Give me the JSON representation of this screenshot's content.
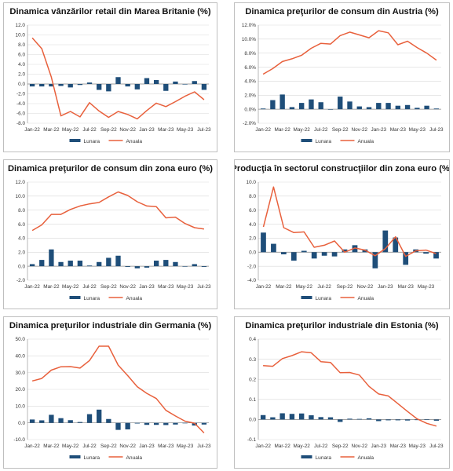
{
  "colors": {
    "bar": "#1f4e79",
    "line": "#e8603c",
    "grid": "#d9d9d9",
    "axis": "#999999"
  },
  "legend": {
    "bar_label": "Lunara",
    "line_label": "Anuala"
  },
  "chart_data": [
    {
      "type": "bar+line",
      "title": "Dinamica vânzărilor retail din Marea Britanie (%)",
      "ylim": [
        -8.0,
        12.0
      ],
      "yticks": [
        "12.0",
        "10.0",
        "8.0",
        "6.0",
        "4.0",
        "2.0",
        "0.0",
        "-2.0",
        "-4.0",
        "-6.0",
        "-8.0"
      ],
      "xticks": [
        "Jan-22",
        "Mar-22",
        "May-22",
        "Jul-22",
        "Sep-22",
        "Nov-22",
        "Jan-23",
        "Mar-23",
        "May-23",
        "Jul-23"
      ],
      "grid": true,
      "legend_position": "bottom",
      "series": [
        {
          "name": "Lunara",
          "kind": "bar",
          "values": [
            -0.5,
            -0.5,
            -0.5,
            -0.4,
            -0.7,
            -0.2,
            0.3,
            -1.2,
            -1.5,
            1.4,
            -0.5,
            -1.1,
            1.2,
            0.8,
            -1.4,
            0.5,
            -0.1,
            0.6,
            -1.2
          ]
        },
        {
          "name": "Anuala",
          "kind": "line",
          "values": [
            9.4,
            7.2,
            1.4,
            -6.5,
            -5.6,
            -6.7,
            -3.8,
            -5.5,
            -6.8,
            -5.6,
            -6.2,
            -7.1,
            -5.4,
            -3.9,
            -4.6,
            -3.6,
            -2.5,
            -1.6,
            -3.2
          ]
        }
      ]
    },
    {
      "type": "bar+line",
      "title": "Dinamica preţurilor de consum din Austria (%)",
      "ylim": [
        -2.0,
        12.0
      ],
      "yticks": [
        "12.0%",
        "10.0%",
        "8.0%",
        "6.0%",
        "4.0%",
        "2.0%",
        "0.0%",
        "-2.0%"
      ],
      "xticks": [
        "Jan-22",
        "Mar-22",
        "May-22",
        "Jul-22",
        "Sep-22",
        "Nov-22",
        "Jan-23",
        "Mar-23",
        "May-23",
        "Jul-23"
      ],
      "grid": true,
      "legend_position": "bottom",
      "series": [
        {
          "name": "Lunara",
          "kind": "bar",
          "values": [
            0.1,
            1.3,
            2.1,
            0.3,
            0.9,
            1.4,
            1.0,
            0.0,
            1.8,
            1.1,
            0.4,
            0.3,
            0.9,
            0.9,
            0.5,
            0.6,
            0.2,
            0.5,
            0.1
          ]
        },
        {
          "name": "Anuala",
          "kind": "line",
          "values": [
            5.0,
            5.8,
            6.8,
            7.2,
            7.7,
            8.7,
            9.4,
            9.3,
            10.5,
            11.0,
            10.6,
            10.2,
            11.2,
            10.9,
            9.2,
            9.7,
            8.8,
            8.0,
            7.0
          ]
        }
      ]
    },
    {
      "type": "bar+line",
      "title": "Dinamica preţurilor de consum din zona euro (%)",
      "ylim": [
        -2.0,
        12.0
      ],
      "yticks": [
        "12.0",
        "10.0",
        "8.0",
        "6.0",
        "4.0",
        "2.0",
        "0.0",
        "-2.0"
      ],
      "xticks": [
        "Jan-22",
        "Mar-22",
        "May-22",
        "Jul-22",
        "Sep-22",
        "Nov-22",
        "Jan-23",
        "Mar-23",
        "May-23",
        "Jul-23"
      ],
      "grid": true,
      "legend_position": "bottom",
      "series": [
        {
          "name": "Lunara",
          "kind": "bar",
          "values": [
            0.3,
            0.9,
            2.4,
            0.6,
            0.8,
            0.8,
            0.1,
            0.6,
            1.2,
            1.5,
            -0.1,
            -0.3,
            -0.2,
            0.8,
            0.9,
            0.6,
            0.0,
            0.3,
            -0.1
          ]
        },
        {
          "name": "Anuala",
          "kind": "line",
          "values": [
            5.1,
            5.9,
            7.4,
            7.4,
            8.1,
            8.6,
            8.9,
            9.1,
            9.9,
            10.6,
            10.1,
            9.2,
            8.6,
            8.5,
            6.9,
            7.0,
            6.1,
            5.5,
            5.3
          ]
        }
      ]
    },
    {
      "type": "bar+line",
      "title": "Producţia în sectorul construcţiilor din zona euro (%)",
      "ylim": [
        -4.0,
        10.0
      ],
      "yticks": [
        "10.0",
        "8.0",
        "6.0",
        "4.0",
        "2.0",
        "0.0",
        "-2.0",
        "-4.0"
      ],
      "xticks": [
        "Jan-22",
        "Mar-22",
        "May-22",
        "Jul-22",
        "Sep-22",
        "Nov-22",
        "Jan-23",
        "Mar-23",
        "May-23"
      ],
      "grid": true,
      "legend_position": "bottom",
      "series": [
        {
          "name": "Lunara",
          "kind": "bar",
          "values": [
            2.8,
            1.2,
            -0.3,
            -1.2,
            0.2,
            -0.9,
            -0.5,
            -0.6,
            0.4,
            1.0,
            0.4,
            -2.3,
            3.1,
            2.1,
            -1.8,
            0.4,
            -0.2,
            -0.9
          ]
        },
        {
          "name": "Anuala",
          "kind": "line",
          "values": [
            3.6,
            9.3,
            3.5,
            2.8,
            2.9,
            0.7,
            1.0,
            1.6,
            0.0,
            0.6,
            0.3,
            -0.5,
            0.5,
            2.2,
            -0.6,
            0.2,
            0.3,
            -0.2
          ]
        }
      ]
    },
    {
      "type": "bar+line",
      "title": "Dinamica preţurilor industriale din Germania (%)",
      "ylim": [
        -10.0,
        50.0
      ],
      "yticks": [
        "50.0",
        "40.0",
        "30.0",
        "20.0",
        "10.0",
        "0.0",
        "-10.0"
      ],
      "xticks": [
        "Jan-22",
        "Mar-22",
        "May-22",
        "Jul-22",
        "Sep-22",
        "Nov-22",
        "Jan-23",
        "Mar-23",
        "May-23",
        "Jul-23"
      ],
      "grid": true,
      "legend_position": "bottom",
      "series": [
        {
          "name": "Lunara",
          "kind": "bar",
          "values": [
            2.0,
            1.5,
            4.8,
            2.8,
            1.6,
            0.5,
            5.2,
            7.9,
            2.3,
            -4.2,
            -3.9,
            -0.4,
            -1.2,
            -1.2,
            -1.3,
            -1.0,
            -0.3,
            -1.6,
            -1.0
          ]
        },
        {
          "name": "Anuala",
          "kind": "line",
          "values": [
            25.0,
            26.5,
            31.5,
            33.5,
            33.6,
            32.7,
            37.2,
            45.8,
            45.8,
            34.5,
            28.2,
            21.6,
            17.6,
            14.5,
            7.5,
            4.1,
            1.0,
            -0.2,
            -6.0
          ]
        }
      ]
    },
    {
      "type": "bar+line",
      "title": "Dinamica preţurilor industriale din Estonia (%)",
      "ylim": [
        -0.1,
        0.4
      ],
      "yticks": [
        "0.4",
        "0.3",
        "0.2",
        "0.1",
        "0.0",
        "-0.1"
      ],
      "xticks": [
        "Jan-22",
        "Mar-22",
        "May-22",
        "Jul-22",
        "Sep-22",
        "Nov-22",
        "Jan-23",
        "Mar-23",
        "May-23",
        "Jul-23"
      ],
      "grid": true,
      "legend_position": "bottom",
      "series": [
        {
          "name": "Lunara",
          "kind": "bar",
          "values": [
            0.022,
            0.011,
            0.031,
            0.028,
            0.03,
            0.021,
            0.012,
            0.011,
            -0.012,
            0.004,
            0.003,
            0.006,
            -0.008,
            -0.004,
            -0.004,
            -0.005,
            -0.003,
            -0.002,
            -0.006
          ]
        },
        {
          "name": "Anuala",
          "kind": "line",
          "values": [
            0.268,
            0.265,
            0.303,
            0.318,
            0.337,
            0.332,
            0.288,
            0.284,
            0.233,
            0.234,
            0.221,
            0.165,
            0.127,
            0.117,
            0.079,
            0.04,
            0.003,
            -0.019,
            -0.033
          ]
        }
      ]
    }
  ]
}
